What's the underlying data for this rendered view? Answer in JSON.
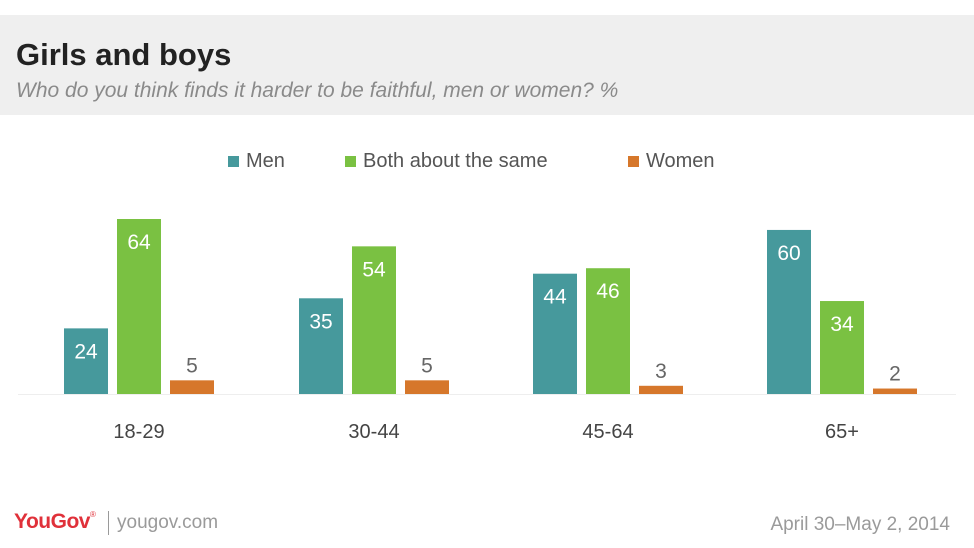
{
  "header": {
    "title": "Girls and boys",
    "subtitle": "Who do you think finds it harder to be faithful, men or women? %"
  },
  "footer": {
    "logo": "YouGov",
    "url": "yougov.com",
    "date": "April 30–May 2, 2014"
  },
  "colors": {
    "men": "#46999c",
    "both": "#7ac142",
    "women": "#d6772b",
    "label_inside": "#ffffff",
    "label_outside": "#666666"
  },
  "chart_data": {
    "type": "bar",
    "title": "Girls and boys",
    "subtitle": "Who do you think finds it harder to be faithful, men or women? %",
    "categories": [
      "18-29",
      "30-44",
      "45-64",
      "65+"
    ],
    "series": [
      {
        "name": "Men",
        "values": [
          24,
          35,
          44,
          60
        ]
      },
      {
        "name": "Both about the same",
        "values": [
          64,
          54,
          46,
          34
        ]
      },
      {
        "name": "Women",
        "values": [
          5,
          5,
          3,
          2
        ]
      }
    ],
    "ylim": [
      0,
      64
    ],
    "grid": false,
    "legend": "top-center",
    "data_labels": true
  }
}
